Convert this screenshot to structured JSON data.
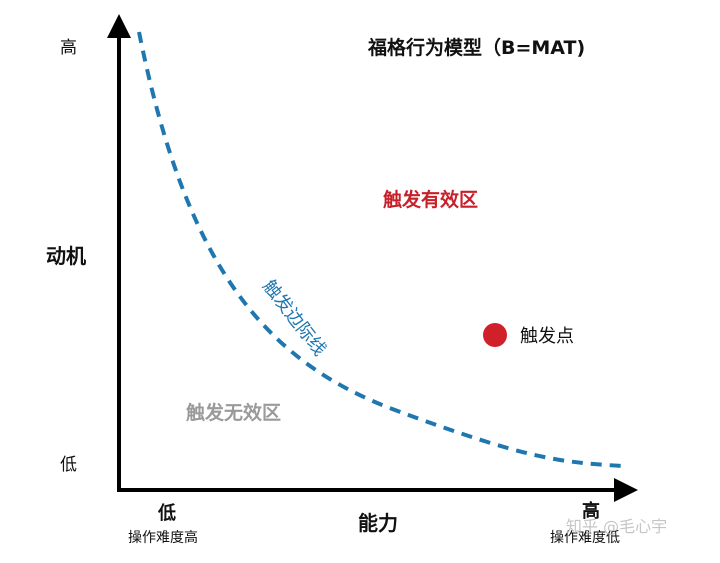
{
  "title": "福格行为模型（B=MAT)",
  "y_axis": {
    "label": "动机",
    "top_label": "高",
    "bottom_label": "低"
  },
  "x_axis": {
    "label": "能力",
    "left_label": "低",
    "left_sublabel": "操作难度高",
    "right_label": "高",
    "right_sublabel": "操作难度低"
  },
  "curve_label": "触发边际线",
  "zones": {
    "effective": "触发有效区",
    "ineffective": "触发无效区"
  },
  "trigger_point": {
    "label": "触发点"
  },
  "watermark": "知乎 @毛心宇",
  "colors": {
    "axis": "#000000",
    "curve": "#1f77b0",
    "effective": "#c8202a",
    "ineffective": "#9a9a9a",
    "point": "#d0202a",
    "text": "#111111"
  }
}
